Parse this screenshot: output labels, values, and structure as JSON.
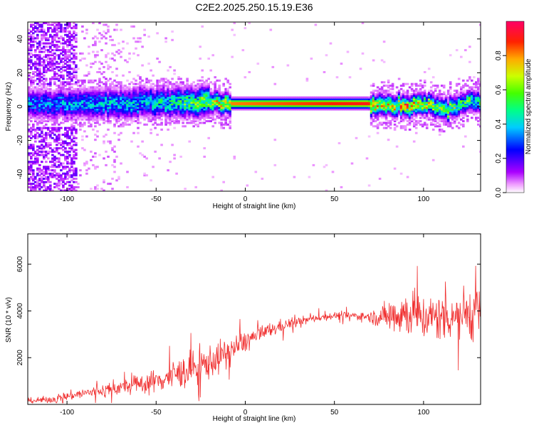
{
  "title": "C2E2.2025.250.15.19.E36",
  "chart_data": [
    {
      "type": "heatmap",
      "title": "C2E2.2025.250.15.19.E36",
      "xlabel": "Height of straight line (km)",
      "ylabel": "Frequency (Hz)",
      "xlim": [
        -122,
        132
      ],
      "ylim": [
        -50,
        50
      ],
      "x_ticks": [
        -100,
        -50,
        0,
        50,
        100
      ],
      "y_ticks": [
        -40,
        -20,
        0,
        20,
        40
      ],
      "grid": false,
      "colorbar": {
        "label": "Normalized spectral amplitude",
        "range": [
          0.0,
          1.0
        ],
        "ticks": [
          "0.0",
          "0.2",
          "0.4",
          "0.6",
          "0.8"
        ],
        "tick_values": [
          0.0,
          0.2,
          0.4,
          0.6,
          0.8
        ],
        "colors": [
          "#ffffff",
          "#cc88ff",
          "#7700ff",
          "#0000ff",
          "#00ffff",
          "#00ff66",
          "#66ff00",
          "#ffff00",
          "#ff8800",
          "#ff0000",
          "#ff0077"
        ]
      },
      "ridge": {
        "description_points": [
          {
            "x": -110,
            "freq": 1.5,
            "amp": 0.35
          },
          {
            "x": -50,
            "freq": 2.0,
            "amp": 0.45
          },
          {
            "x": -20,
            "freq": 3.0,
            "amp": 0.65
          },
          {
            "x": -8,
            "freq": 1.5,
            "amp": 0.85
          },
          {
            "x": 68,
            "freq": 1.5,
            "amp": 0.95
          },
          {
            "x": 78,
            "freq": 0.5,
            "amp": 0.7
          },
          {
            "x": 90,
            "freq": 0.0,
            "amp": 0.8
          },
          {
            "x": 102,
            "freq": 1.0,
            "amp": 0.7
          },
          {
            "x": 113,
            "freq": -3.0,
            "amp": 0.65
          },
          {
            "x": 122,
            "freq": 3.5,
            "amp": 0.55
          },
          {
            "x": 132,
            "freq": 2.0,
            "amp": 0.5
          }
        ]
      },
      "colors": {
        "ridge_peak": "#ff0000",
        "ridge_band": "#00ff66",
        "noise": "#7700ff"
      }
    },
    {
      "type": "line",
      "xlabel": "Height of straight line (km)",
      "ylabel": "SNR (10 * v/v)",
      "xlim": [
        -122,
        132
      ],
      "ylim": [
        0,
        7300
      ],
      "x_ticks": [
        -100,
        -50,
        0,
        50,
        100
      ],
      "y_ticks": [
        2000,
        4000,
        6000
      ],
      "grid": false,
      "series": [
        {
          "name": "SNR",
          "color": "#f03030",
          "x": [
            -122,
            -110,
            -100,
            -90,
            -80,
            -70,
            -60,
            -50,
            -40,
            -30,
            -20,
            -10,
            0,
            10,
            20,
            30,
            40,
            50,
            60,
            70,
            75,
            80,
            85,
            90,
            95,
            100,
            105,
            110,
            115,
            120,
            125,
            130,
            132
          ],
          "y": [
            150,
            200,
            350,
            480,
            600,
            720,
            850,
            1000,
            1250,
            1500,
            1800,
            2200,
            2700,
            3050,
            3350,
            3550,
            3700,
            3800,
            3800,
            3750,
            3700,
            3800,
            3900,
            3900,
            3850,
            3700,
            3700,
            3750,
            3800,
            3900,
            3900,
            3950,
            3950
          ],
          "spread": [
            150,
            200,
            250,
            300,
            350,
            400,
            500,
            650,
            800,
            900,
            900,
            800,
            600,
            450,
            350,
            250,
            200,
            200,
            200,
            300,
            500,
            900,
            1200,
            1300,
            1250,
            1200,
            1250,
            1300,
            1350,
            1400,
            1450,
            1500,
            1500
          ]
        }
      ]
    }
  ]
}
